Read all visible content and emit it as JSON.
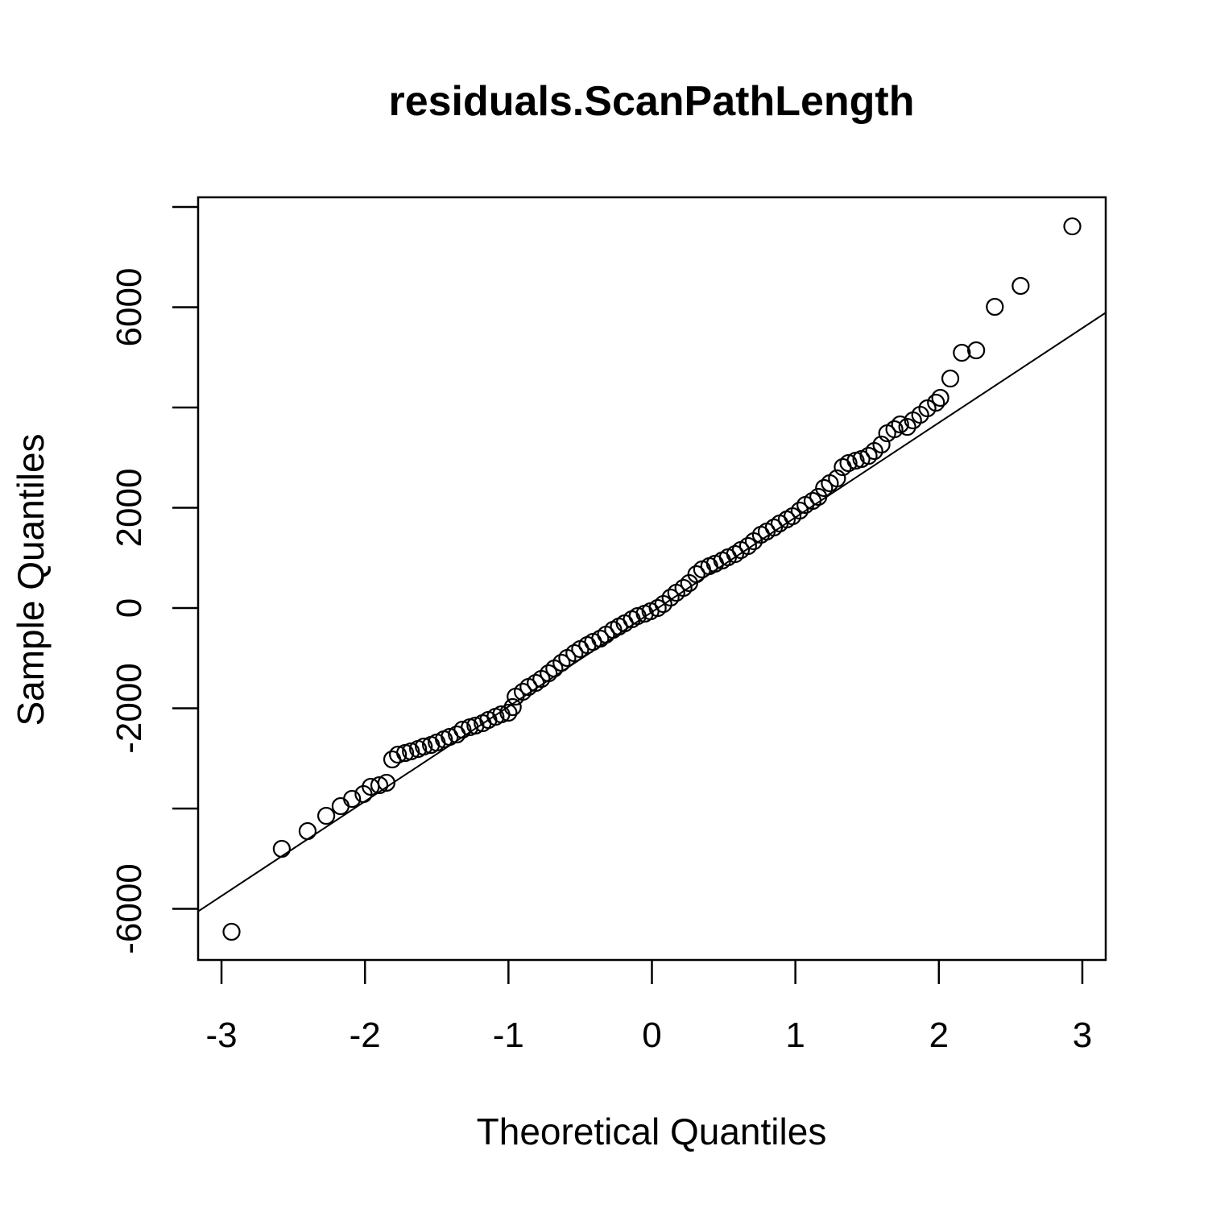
{
  "chart_data": {
    "type": "scatter",
    "title": "residuals.ScanPathLength",
    "x_label": "Theoretical Quantiles",
    "y_label": "Sample Quantiles",
    "xlim": [
      -3.163,
      3.163
    ],
    "ylim": [
      -7020,
      8193
    ],
    "xticks": [
      -3,
      -2,
      -1,
      0,
      1,
      2,
      3
    ],
    "yticks": [
      {
        "value": -6000,
        "label": "-6000"
      },
      {
        "value": -4000,
        "label": null
      },
      {
        "value": -2000,
        "label": "-2000"
      },
      0,
      2000,
      {
        "value": 4000,
        "label": null
      },
      {
        "value": 6000,
        "label": "6000"
      },
      {
        "value": 8000,
        "label": null
      }
    ],
    "color": "#000000",
    "marker": "open-circle",
    "reference_line": {
      "intercept": -80,
      "slope": 1888
    },
    "x": [
      -2.93,
      -2.58,
      -2.4,
      -2.27,
      -2.17,
      -2.09,
      -2.01,
      -1.96,
      -1.9,
      -1.85,
      -1.81,
      -1.77,
      -1.72,
      -1.68,
      -1.63,
      -1.59,
      -1.54,
      -1.5,
      -1.45,
      -1.41,
      -1.36,
      -1.32,
      -1.27,
      -1.23,
      -1.18,
      -1.14,
      -1.09,
      -1.05,
      -1.0,
      -0.97,
      -0.95,
      -0.9,
      -0.86,
      -0.81,
      -0.77,
      -0.72,
      -0.68,
      -0.63,
      -0.59,
      -0.54,
      -0.5,
      -0.45,
      -0.41,
      -0.36,
      -0.32,
      -0.27,
      -0.23,
      -0.19,
      -0.14,
      -0.1,
      -0.05,
      -0.01,
      0.04,
      0.08,
      0.13,
      0.17,
      0.22,
      0.26,
      0.31,
      0.35,
      0.4,
      0.44,
      0.49,
      0.53,
      0.58,
      0.62,
      0.67,
      0.71,
      0.76,
      0.8,
      0.85,
      0.89,
      0.94,
      0.98,
      1.03,
      1.07,
      1.12,
      1.16,
      1.2,
      1.24,
      1.29,
      1.33,
      1.37,
      1.42,
      1.46,
      1.51,
      1.55,
      1.6,
      1.64,
      1.69,
      1.73,
      1.78,
      1.82,
      1.87,
      1.92,
      1.98,
      2.01,
      2.08,
      2.16,
      2.26,
      2.39,
      2.57,
      2.93
    ],
    "values": [
      -6458,
      -4803,
      -4450,
      -4145,
      -3952,
      -3807,
      -3711,
      -3566,
      -3534,
      -3486,
      -3020,
      -2924,
      -2892,
      -2859,
      -2811,
      -2763,
      -2731,
      -2683,
      -2618,
      -2570,
      -2522,
      -2426,
      -2378,
      -2345,
      -2297,
      -2233,
      -2169,
      -2120,
      -2088,
      -1976,
      -1767,
      -1671,
      -1574,
      -1494,
      -1414,
      -1301,
      -1205,
      -1092,
      -996,
      -900,
      -819,
      -739,
      -675,
      -610,
      -530,
      -434,
      -369,
      -305,
      -225,
      -161,
      -112,
      -64,
      0,
      80,
      209,
      305,
      402,
      498,
      675,
      771,
      835,
      884,
      948,
      1012,
      1076,
      1157,
      1237,
      1333,
      1462,
      1526,
      1606,
      1687,
      1767,
      1831,
      1944,
      2056,
      2137,
      2217,
      2394,
      2490,
      2586,
      2811,
      2892,
      2940,
      2972,
      3036,
      3133,
      3261,
      3486,
      3566,
      3663,
      3614,
      3743,
      3855,
      3984,
      4096,
      4193,
      4578,
      5092,
      5141,
      6008,
      6426,
      7614
    ]
  }
}
